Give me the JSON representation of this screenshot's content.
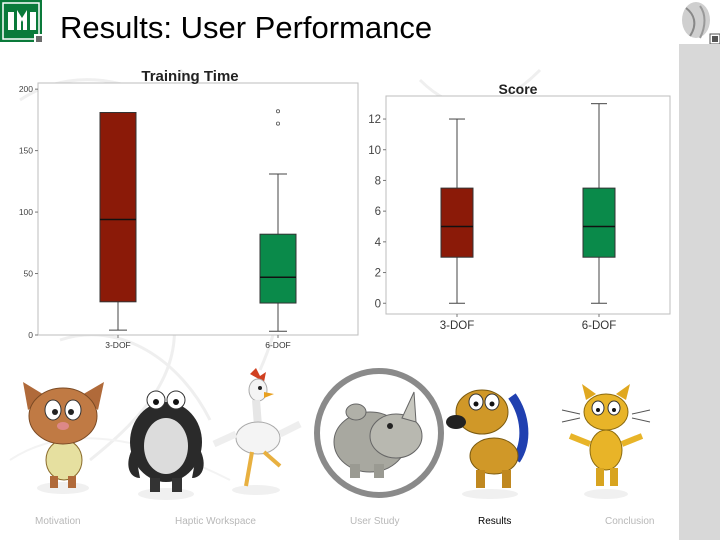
{
  "slide": {
    "title": "Results: User Performance"
  },
  "colors": {
    "dof3": "#8b1a08",
    "dof6": "#0a8a4a",
    "right_bar": "#d8d8d8"
  },
  "chart_data": [
    {
      "type": "boxplot",
      "title": "Training Time",
      "xlabel": "",
      "ylabel": "",
      "categories": [
        "3-DOF",
        "6-DOF"
      ],
      "yticks": [
        "0",
        "50",
        "100",
        "150",
        "200"
      ],
      "ylim": [
        0,
        205
      ],
      "grid": false,
      "boxes": [
        {
          "category": "3-DOF",
          "whisker_low": 4,
          "q1": 27,
          "median": 94,
          "q3": 181,
          "whisker_high": 181,
          "outliers": [],
          "color": "#8b1a08"
        },
        {
          "category": "6-DOF",
          "whisker_low": 3,
          "q1": 26,
          "median": 47,
          "q3": 82,
          "whisker_high": 131,
          "outliers": [
            172,
            182
          ],
          "color": "#0a8a4a"
        }
      ]
    },
    {
      "type": "boxplot",
      "title": "Score",
      "xlabel": "",
      "ylabel": "",
      "categories": [
        "3-DOF",
        "6-DOF"
      ],
      "yticks": [
        "0",
        "2",
        "4",
        "6",
        "8",
        "10",
        "12"
      ],
      "ylim": [
        -0.7,
        13.5
      ],
      "grid": false,
      "boxes": [
        {
          "category": "3-DOF",
          "whisker_low": 0,
          "q1": 3,
          "median": 5,
          "q3": 7.5,
          "whisker_high": 12,
          "outliers": [],
          "color": "#8b1a08"
        },
        {
          "category": "6-DOF",
          "whisker_low": 0,
          "q1": 3,
          "median": 5,
          "q3": 7.5,
          "whisker_high": 13,
          "outliers": [],
          "color": "#0a8a4a"
        }
      ]
    }
  ],
  "footer_nav": {
    "items": [
      {
        "label": "Motivation",
        "active": false
      },
      {
        "label": "Haptic Workspace",
        "active": false
      },
      {
        "label": "User Study",
        "active": false
      },
      {
        "label": "Results",
        "active": true
      },
      {
        "label": "Conclusion",
        "active": false
      }
    ]
  },
  "characters": [
    {
      "name": "cat-character"
    },
    {
      "name": "penguin-character"
    },
    {
      "name": "chicken-character"
    },
    {
      "name": "rhino-character",
      "highlighted": true
    },
    {
      "name": "dog-character"
    },
    {
      "name": "yellow-cat-character"
    }
  ]
}
